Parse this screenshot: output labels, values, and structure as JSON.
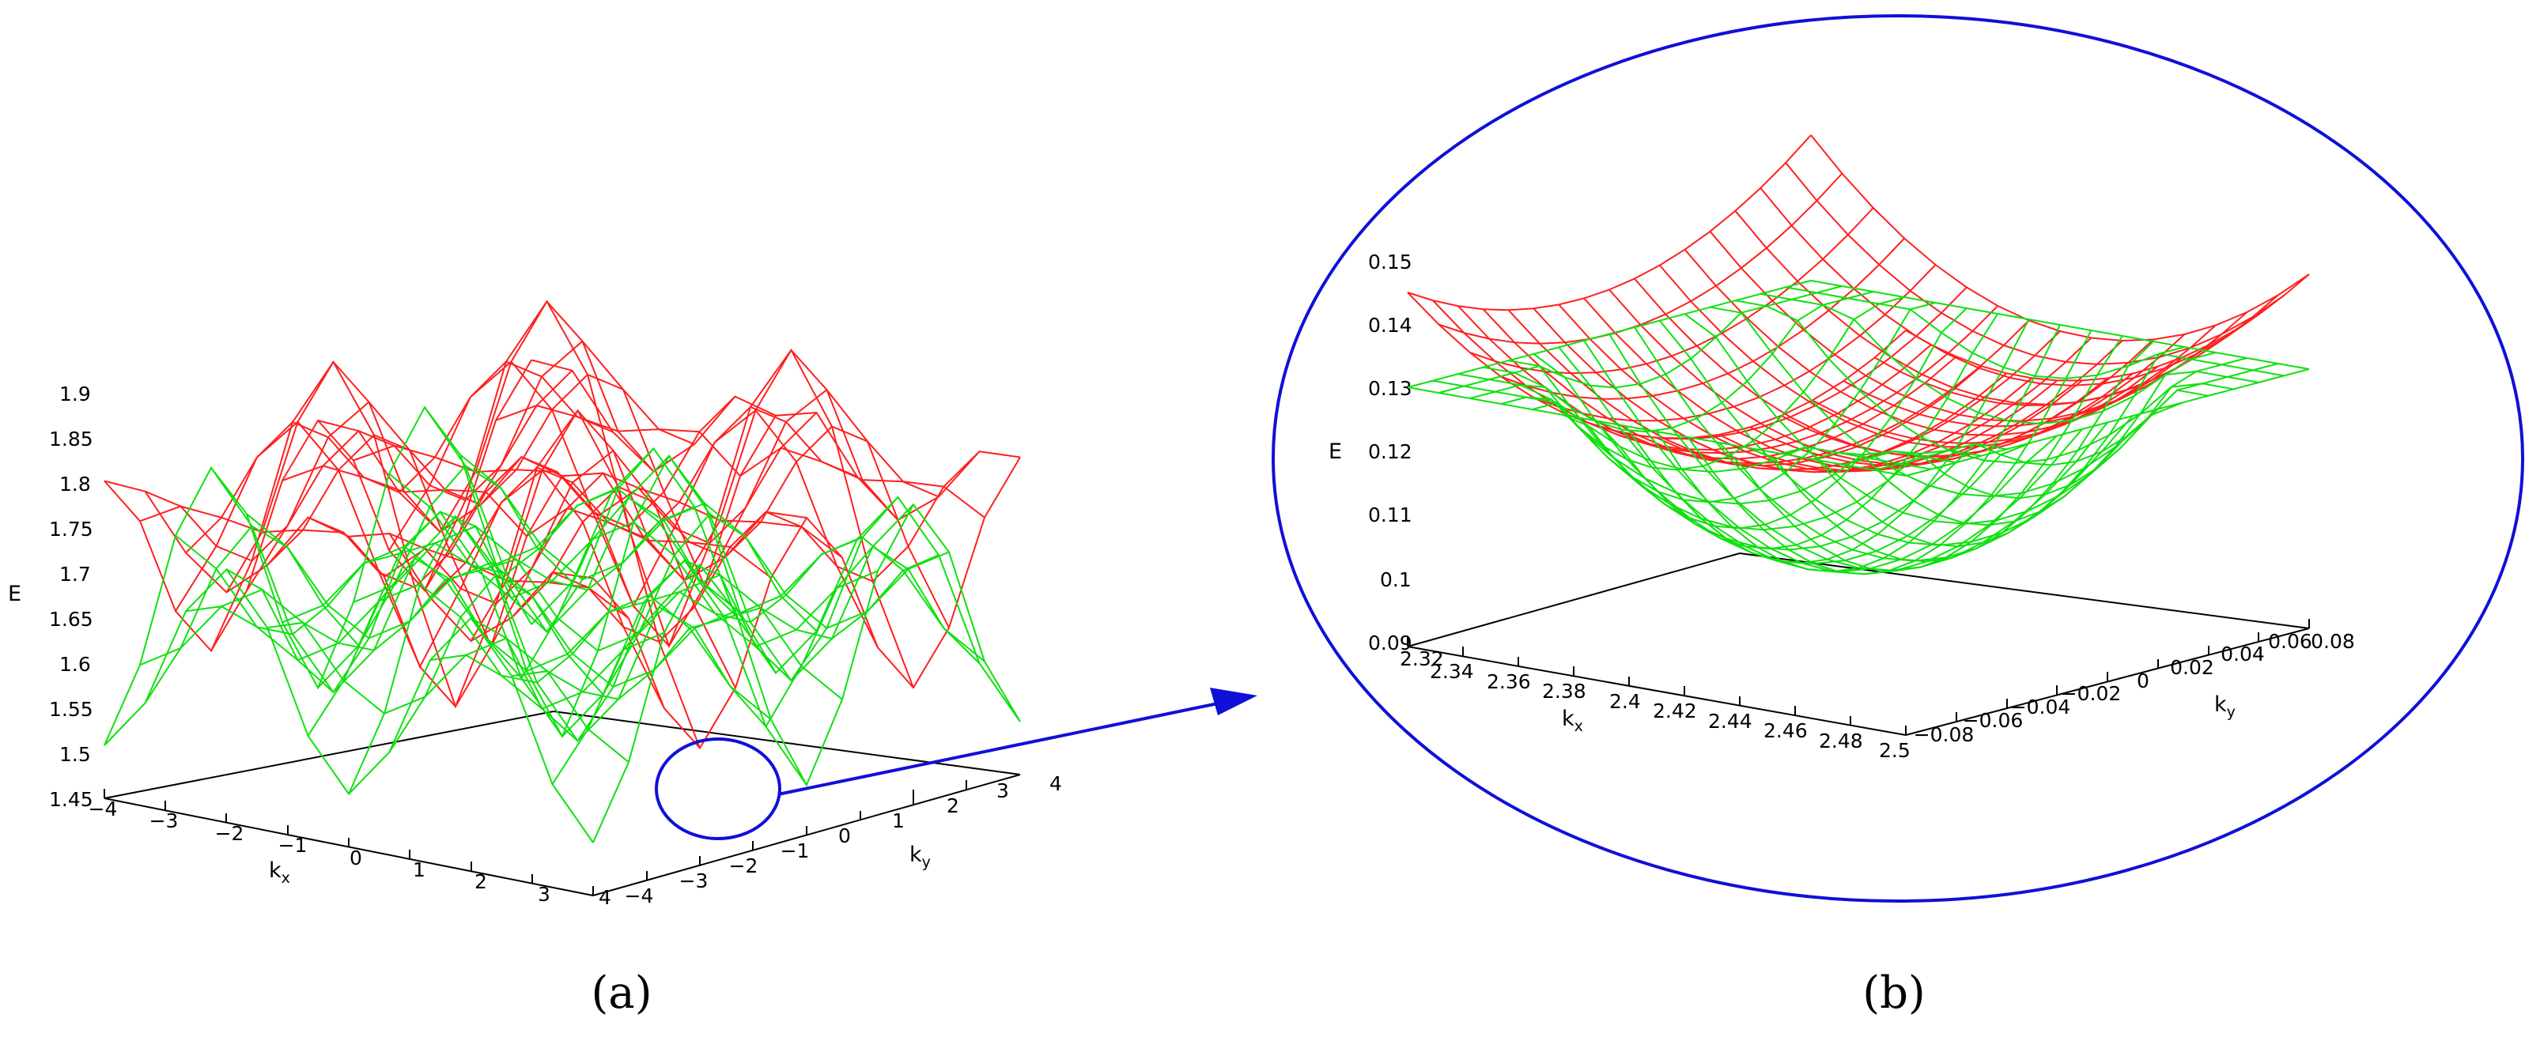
{
  "colors": {
    "upper_band": "#ff2020",
    "lower_band": "#10e010",
    "annotation": "#1010d8",
    "axis": "#000000"
  },
  "chart_data": [
    {
      "panel_label": "(a)",
      "type": "surface3d",
      "zlabel": "E",
      "xlabel": "k",
      "xlabel_sub": "x",
      "ylabel": "k",
      "ylabel_sub": "y",
      "xlim": [
        -4,
        4
      ],
      "ylim": [
        -4,
        4
      ],
      "zlim": [
        1.45,
        1.9
      ],
      "z_ticks": [
        "1.45",
        "1.5",
        "1.55",
        "1.6",
        "1.65",
        "1.7",
        "1.75",
        "1.8",
        "1.85",
        "1.9"
      ],
      "x_ticks": [
        "-4",
        "-3",
        "-2",
        "-1",
        "0",
        "1",
        "2",
        "3",
        "4"
      ],
      "y_ticks": [
        "-4",
        "-3",
        "-2",
        "-1",
        "0",
        "1",
        "2",
        "3",
        "4"
      ],
      "series": [
        {
          "band": "upper",
          "color": "#ff2020",
          "z_min": 1.48,
          "z_max": 1.9,
          "peaks_at_k_edges": true
        },
        {
          "band": "lower",
          "color": "#10e010",
          "z_min": 1.48,
          "z_max": 1.76,
          "peaks_at_k_edges": true
        }
      ],
      "annotation": {
        "highlight": "band touching region near kx≈2.4, ky≈0",
        "arrow_to": "(b)"
      }
    },
    {
      "panel_label": "(b)",
      "type": "surface3d",
      "zlabel": "E",
      "xlabel": "k",
      "xlabel_sub": "x",
      "ylabel": "k",
      "ylabel_sub": "y",
      "xlim": [
        2.32,
        2.5
      ],
      "ylim": [
        -0.08,
        0.08
      ],
      "zlim": [
        0.09,
        0.15
      ],
      "z_ticks": [
        "0.09",
        "0.1",
        "0.11",
        "0.12",
        "0.13",
        "0.14",
        "0.15"
      ],
      "x_ticks": [
        "2.32",
        "2.34",
        "2.36",
        "2.38",
        "2.4",
        "2.42",
        "2.44",
        "2.46",
        "2.48",
        "2.5"
      ],
      "y_ticks": [
        "-0.08",
        "-0.06",
        "-0.04",
        "-0.02",
        "0",
        "0.02",
        "0.04",
        "0.06",
        "0.08"
      ],
      "series": [
        {
          "band": "upper",
          "color": "#ff2020",
          "z_min": 0.118,
          "z_max": 0.149
        },
        {
          "band": "lower",
          "color": "#10e010",
          "z_min": 0.096,
          "z_max": 0.131
        }
      ]
    }
  ]
}
